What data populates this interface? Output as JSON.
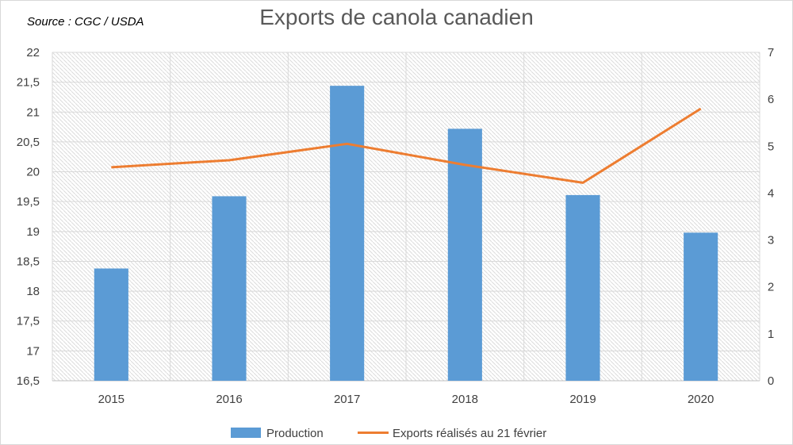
{
  "chart_data": {
    "type": "bar",
    "title": "Exports de canola canadien",
    "annotation": "Source : CGC / USDA",
    "categories": [
      "2015",
      "2016",
      "2017",
      "2018",
      "2019",
      "2020"
    ],
    "series": [
      {
        "name": "Production",
        "type": "bar",
        "axis": "left",
        "values": [
          18.38,
          19.59,
          21.44,
          20.72,
          19.61,
          18.98
        ],
        "color": "#5b9bd5"
      },
      {
        "name": "Exports réalisés au 21 février",
        "type": "line",
        "axis": "right",
        "values": [
          4.55,
          4.7,
          5.05,
          4.6,
          4.22,
          5.8
        ],
        "color": "#ed7d31"
      }
    ],
    "y_left": {
      "min": 16.5,
      "max": 22,
      "step": 0.5,
      "tick_labels": [
        "16,5",
        "17",
        "17,5",
        "18",
        "18,5",
        "19",
        "19,5",
        "20",
        "20,5",
        "21",
        "21,5",
        "22"
      ]
    },
    "y_right": {
      "min": 0,
      "max": 7,
      "step": 1,
      "tick_labels": [
        "0",
        "1",
        "2",
        "3",
        "4",
        "5",
        "6",
        "7"
      ]
    },
    "grid": true,
    "legend_position": "bottom"
  }
}
